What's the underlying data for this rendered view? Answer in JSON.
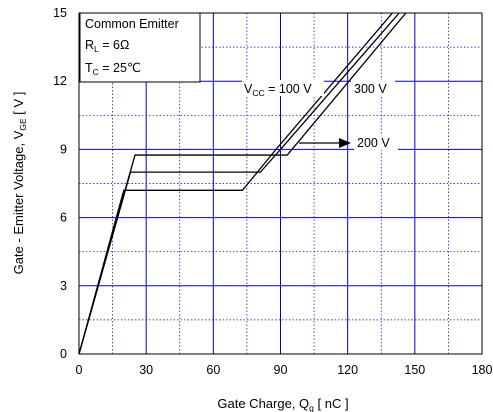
{
  "chart_data": {
    "type": "line",
    "xlabel": "Gate Charge,  Q",
    "xlabel_sub": "g",
    "xlabel_suffix": " [ nC ]",
    "ylabel": "Gate - Emitter Voltage,  V",
    "ylabel_sub": "GE",
    "ylabel_suffix": " [ V ]",
    "xlim": [
      0,
      180
    ],
    "ylim": [
      0,
      15
    ],
    "xticks": [
      0,
      30,
      60,
      90,
      120,
      150,
      180
    ],
    "yticks": [
      0,
      3,
      6,
      9,
      12,
      15
    ],
    "grid": true,
    "legend": {
      "position": "top-left",
      "lines": [
        "Common Emitter",
        "R",
        "T"
      ],
      "r_sub": "L",
      "r_value": " = 6Ω",
      "t_sub": "C",
      "t_value": " = 25℃"
    },
    "annotations": {
      "v100_prefix": "V",
      "v100_sub": "CC",
      "v100_value": " = 100 V",
      "v300": "300 V",
      "v200": "200 V"
    },
    "series": [
      {
        "x": [
          0,
          20,
          73,
          88,
          140
        ],
        "y": [
          0,
          7.2,
          7.2,
          9.0,
          15.0
        ]
      },
      {
        "x": [
          0,
          23,
          81,
          90,
          143
        ],
        "y": [
          0,
          8.0,
          8.0,
          9.0,
          15.0
        ]
      },
      {
        "x": [
          0,
          25,
          93,
          146
        ],
        "y": [
          0,
          8.75,
          8.75,
          15.0
        ]
      }
    ],
    "color": "#000000",
    "grid_color": "#0000cc"
  }
}
